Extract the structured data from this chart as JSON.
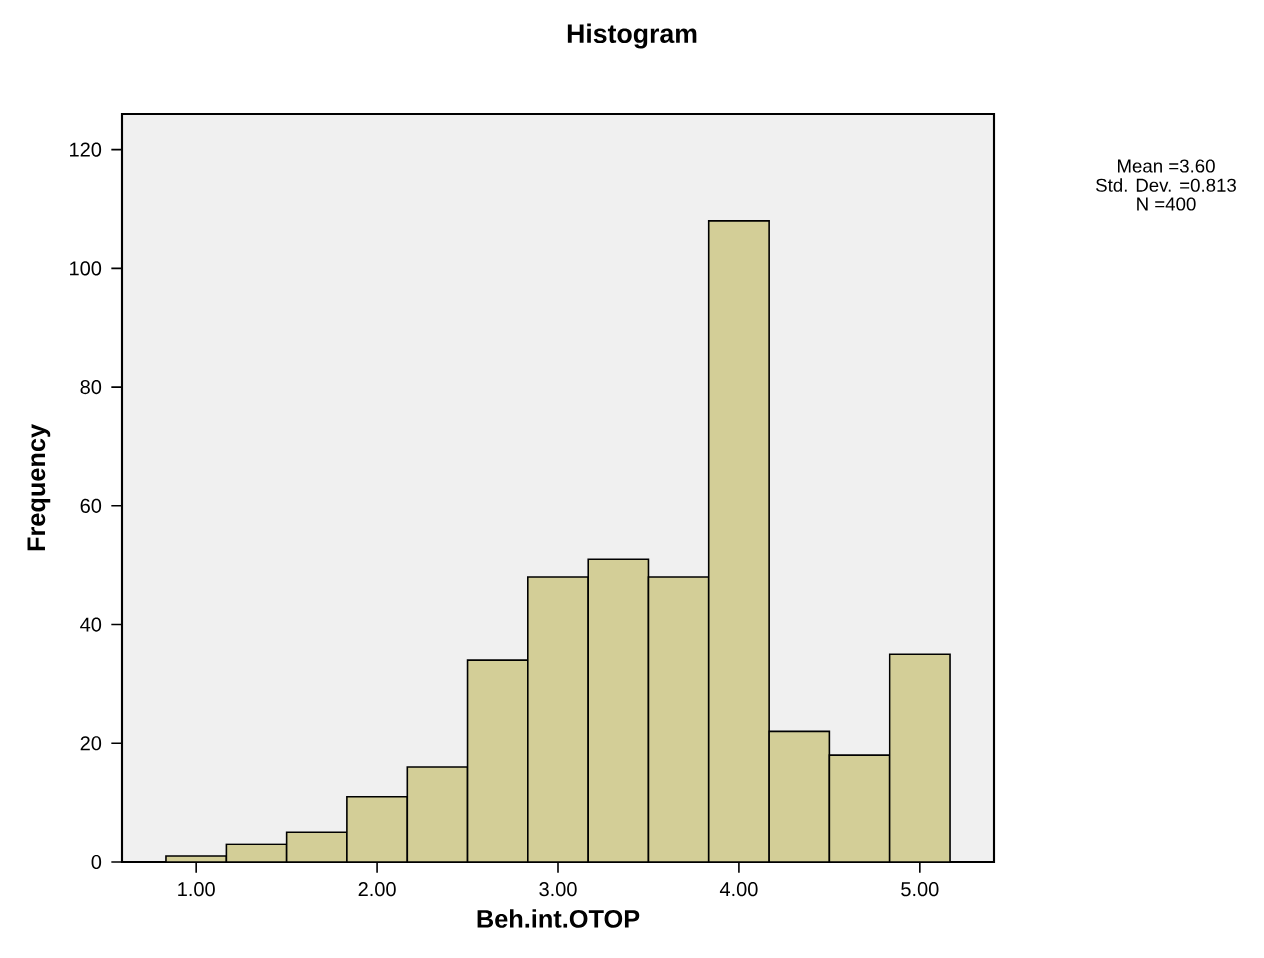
{
  "chart_data": {
    "type": "histogram",
    "title": "Histogram",
    "xlabel": "Beh.int.OTOP",
    "ylabel": "Frequency",
    "bins": [
      0.833,
      1.167,
      1.5,
      1.833,
      2.167,
      2.5,
      2.833,
      3.167,
      3.5,
      3.833,
      4.167,
      4.5,
      4.833,
      5.167
    ],
    "values": [
      1,
      3,
      5,
      11,
      16,
      34,
      48,
      51,
      48,
      108,
      22,
      18,
      35
    ],
    "color": "#d3ce97",
    "xlim": [
      0.59,
      5.41
    ],
    "ylim": [
      0,
      126
    ],
    "xticks": [
      {
        "value": 1,
        "label": "1.00"
      },
      {
        "value": 2,
        "label": "2.00"
      },
      {
        "value": 3,
        "label": "3.00"
      },
      {
        "value": 4,
        "label": "4.00"
      },
      {
        "value": 5,
        "label": "5.00"
      }
    ],
    "yticks": [
      0,
      20,
      40,
      60,
      80,
      100,
      120
    ],
    "grid": false,
    "annotations": [
      "Mean =3.60",
      "Std. Dev. =0.813",
      "N =400"
    ]
  }
}
